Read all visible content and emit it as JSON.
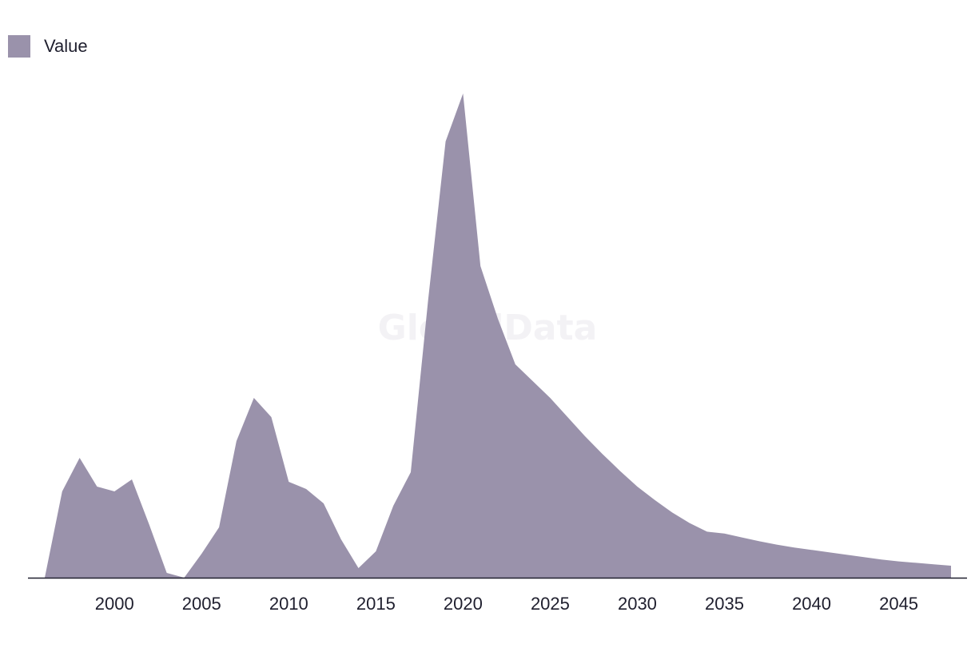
{
  "legend": {
    "label": "Value",
    "color": "#9a92ab"
  },
  "watermark": "GlobalData",
  "colors": {
    "area": "#9a92ab",
    "axis": "#1f1f2e"
  },
  "chart_data": {
    "type": "area",
    "title": "",
    "xlabel": "",
    "ylabel": "",
    "grid": false,
    "legend_position": "top-left",
    "xlim": [
      1996,
      2048
    ],
    "ylim": [
      0,
      100
    ],
    "x_ticks": [
      2000,
      2005,
      2010,
      2015,
      2020,
      2025,
      2030,
      2035,
      2040,
      2045
    ],
    "series": [
      {
        "name": "Value",
        "x": [
          1996,
          1997,
          1998,
          1999,
          2000,
          2001,
          2002,
          2003,
          2004,
          2005,
          2006,
          2007,
          2008,
          2009,
          2010,
          2011,
          2012,
          2013,
          2014,
          2015,
          2016,
          2017,
          2018,
          2019,
          2020,
          2021,
          2022,
          2023,
          2024,
          2025,
          2026,
          2027,
          2028,
          2029,
          2030,
          2031,
          2032,
          2033,
          2034,
          2035,
          2036,
          2037,
          2038,
          2039,
          2040,
          2041,
          2042,
          2043,
          2044,
          2045,
          2046,
          2047,
          2048
        ],
        "values": [
          0,
          18,
          25,
          19,
          18,
          20.5,
          11,
          1,
          0,
          5,
          10.5,
          28.5,
          37.5,
          33.5,
          20,
          18.5,
          15.5,
          8,
          2,
          5.5,
          15,
          22,
          58,
          91,
          101,
          65,
          54,
          44.5,
          41,
          37.5,
          33.5,
          29.5,
          25.8,
          22.3,
          19,
          16.2,
          13.6,
          11.4,
          9.6,
          9.2,
          8.4,
          7.6,
          6.9,
          6.3,
          5.8,
          5.3,
          4.8,
          4.3,
          3.8,
          3.4,
          3.1,
          2.8,
          2.5
        ]
      }
    ]
  }
}
